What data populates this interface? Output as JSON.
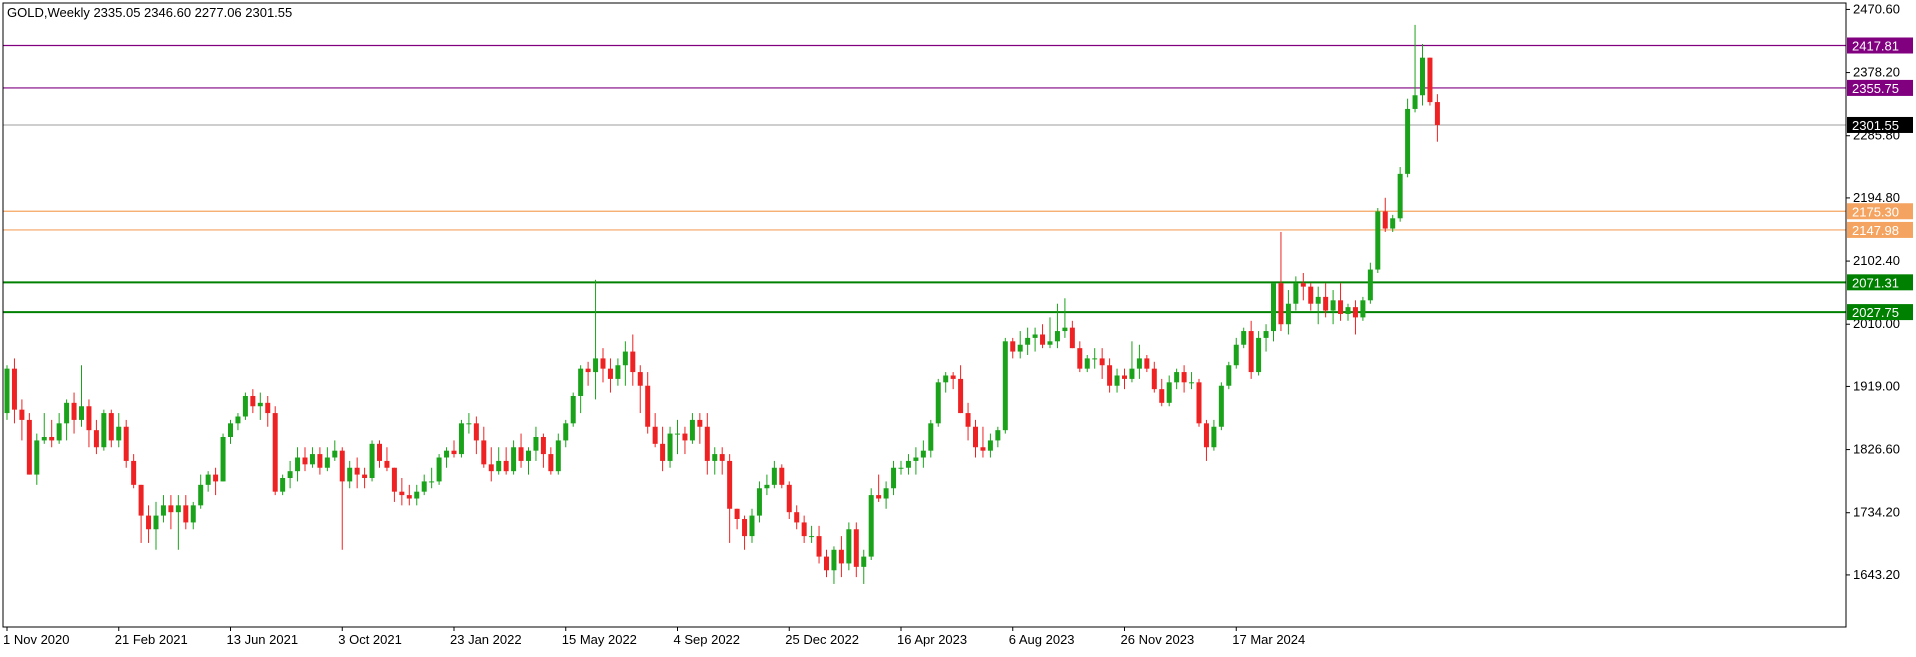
{
  "chart_data": {
    "type": "candlestick",
    "symbol": "GOLD",
    "timeframe": "Weekly",
    "header_text": "GOLD,Weekly  2335.05 2346.60 2277.06 2301.55",
    "ohlc": {
      "open": 2335.05,
      "high": 2346.6,
      "low": 2277.06,
      "close": 2301.55
    },
    "ylim": [
      1567,
      2480
    ],
    "y_ticks": [
      {
        "value": 2470.6,
        "label": "2470.60"
      },
      {
        "value": 2378.2,
        "label": "2378.20"
      },
      {
        "value": 2285.8,
        "label": "2285.80"
      },
      {
        "value": 2194.8,
        "label": "2194.80"
      },
      {
        "value": 2102.4,
        "label": "2102.40"
      },
      {
        "value": 2010.0,
        "label": "2010.00"
      },
      {
        "value": 1919.0,
        "label": "1919.00"
      },
      {
        "value": 1826.6,
        "label": "1826.60"
      },
      {
        "value": 1734.2,
        "label": "1734.20"
      },
      {
        "value": 1643.2,
        "label": "1643.20"
      }
    ],
    "x_tick_labels": [
      "1 Nov 2020",
      "21 Feb 2021",
      "13 Jun 2021",
      "3 Oct 2021",
      "23 Jan 2022",
      "15 May 2022",
      "4 Sep 2022",
      "25 Dec 2022",
      "16 Apr 2023",
      "6 Aug 2023",
      "26 Nov 2023",
      "17 Mar 2024"
    ],
    "levels": [
      {
        "value": 2417.81,
        "label": "2417.81",
        "color": "#800080"
      },
      {
        "value": 2355.75,
        "label": "2355.75",
        "color": "#800080"
      },
      {
        "value": 2301.55,
        "label": "2301.55",
        "color": "#000000",
        "line_color": "#b0b0b0"
      },
      {
        "value": 2175.3,
        "label": "2175.30",
        "color": "#f4a460"
      },
      {
        "value": 2147.98,
        "label": "2147.98",
        "color": "#f4a460"
      },
      {
        "value": 2071.31,
        "label": "2071.31",
        "color": "#008000"
      },
      {
        "value": 2027.75,
        "label": "2027.75",
        "color": "#008000"
      }
    ],
    "colors": {
      "up": "#1aa31a",
      "down": "#ee2222",
      "axis": "#000000"
    },
    "candles": [
      [
        1880,
        1950,
        1870,
        1945
      ],
      [
        1945,
        1960,
        1865,
        1885
      ],
      [
        1885,
        1900,
        1840,
        1870
      ],
      [
        1870,
        1880,
        1790,
        1790
      ],
      [
        1790,
        1850,
        1775,
        1840
      ],
      [
        1840,
        1880,
        1835,
        1845
      ],
      [
        1845,
        1870,
        1830,
        1840
      ],
      [
        1840,
        1880,
        1835,
        1865
      ],
      [
        1865,
        1900,
        1840,
        1895
      ],
      [
        1895,
        1910,
        1850,
        1870
      ],
      [
        1870,
        1950,
        1860,
        1890
      ],
      [
        1890,
        1900,
        1830,
        1855
      ],
      [
        1855,
        1870,
        1820,
        1830
      ],
      [
        1830,
        1885,
        1825,
        1880
      ],
      [
        1880,
        1885,
        1830,
        1840
      ],
      [
        1840,
        1880,
        1830,
        1860
      ],
      [
        1860,
        1870,
        1800,
        1810
      ],
      [
        1810,
        1820,
        1770,
        1775
      ],
      [
        1775,
        1775,
        1690,
        1730
      ],
      [
        1730,
        1745,
        1690,
        1710
      ],
      [
        1710,
        1750,
        1680,
        1730
      ],
      [
        1730,
        1760,
        1720,
        1745
      ],
      [
        1745,
        1760,
        1710,
        1735
      ],
      [
        1735,
        1760,
        1680,
        1745
      ],
      [
        1745,
        1760,
        1710,
        1720
      ],
      [
        1720,
        1750,
        1710,
        1745
      ],
      [
        1745,
        1790,
        1740,
        1775
      ],
      [
        1775,
        1795,
        1765,
        1790
      ],
      [
        1790,
        1800,
        1760,
        1780
      ],
      [
        1780,
        1850,
        1780,
        1845
      ],
      [
        1845,
        1870,
        1835,
        1865
      ],
      [
        1865,
        1880,
        1855,
        1875
      ],
      [
        1875,
        1910,
        1870,
        1905
      ],
      [
        1905,
        1915,
        1880,
        1890
      ],
      [
        1890,
        1910,
        1870,
        1895
      ],
      [
        1895,
        1905,
        1860,
        1880
      ],
      [
        1880,
        1890,
        1760,
        1765
      ],
      [
        1765,
        1790,
        1760,
        1785
      ],
      [
        1785,
        1810,
        1770,
        1795
      ],
      [
        1795,
        1830,
        1780,
        1815
      ],
      [
        1815,
        1830,
        1795,
        1805
      ],
      [
        1805,
        1830,
        1800,
        1820
      ],
      [
        1820,
        1830,
        1790,
        1800
      ],
      [
        1800,
        1830,
        1795,
        1815
      ],
      [
        1815,
        1840,
        1810,
        1825
      ],
      [
        1825,
        1830,
        1680,
        1780
      ],
      [
        1780,
        1810,
        1770,
        1800
      ],
      [
        1800,
        1815,
        1770,
        1790
      ],
      [
        1790,
        1800,
        1770,
        1785
      ],
      [
        1785,
        1840,
        1780,
        1835
      ],
      [
        1835,
        1840,
        1800,
        1810
      ],
      [
        1810,
        1830,
        1795,
        1800
      ],
      [
        1800,
        1800,
        1750,
        1765
      ],
      [
        1765,
        1785,
        1745,
        1760
      ],
      [
        1760,
        1775,
        1745,
        1755
      ],
      [
        1755,
        1775,
        1745,
        1765
      ],
      [
        1765,
        1790,
        1760,
        1780
      ],
      [
        1780,
        1800,
        1770,
        1780
      ],
      [
        1780,
        1820,
        1775,
        1815
      ],
      [
        1815,
        1830,
        1800,
        1825
      ],
      [
        1825,
        1840,
        1815,
        1820
      ],
      [
        1820,
        1870,
        1815,
        1865
      ],
      [
        1865,
        1880,
        1850,
        1865
      ],
      [
        1865,
        1875,
        1820,
        1840
      ],
      [
        1840,
        1860,
        1800,
        1805
      ],
      [
        1805,
        1830,
        1780,
        1795
      ],
      [
        1795,
        1830,
        1790,
        1810
      ],
      [
        1810,
        1830,
        1790,
        1795
      ],
      [
        1795,
        1840,
        1790,
        1830
      ],
      [
        1830,
        1850,
        1800,
        1810
      ],
      [
        1810,
        1830,
        1790,
        1825
      ],
      [
        1825,
        1860,
        1810,
        1845
      ],
      [
        1845,
        1850,
        1800,
        1820
      ],
      [
        1820,
        1830,
        1790,
        1795
      ],
      [
        1795,
        1850,
        1790,
        1840
      ],
      [
        1840,
        1870,
        1830,
        1865
      ],
      [
        1865,
        1910,
        1860,
        1905
      ],
      [
        1905,
        1950,
        1880,
        1945
      ],
      [
        1945,
        1955,
        1920,
        1940
      ],
      [
        1940,
        2075,
        1900,
        1960
      ],
      [
        1960,
        1975,
        1925,
        1945
      ],
      [
        1945,
        1960,
        1910,
        1930
      ],
      [
        1930,
        1960,
        1920,
        1950
      ],
      [
        1950,
        1985,
        1920,
        1970
      ],
      [
        1970,
        1995,
        1920,
        1940
      ],
      [
        1940,
        1950,
        1880,
        1920
      ],
      [
        1920,
        1940,
        1850,
        1860
      ],
      [
        1860,
        1880,
        1830,
        1835
      ],
      [
        1835,
        1860,
        1795,
        1810
      ],
      [
        1810,
        1860,
        1800,
        1850
      ],
      [
        1850,
        1870,
        1820,
        1850
      ],
      [
        1850,
        1860,
        1820,
        1840
      ],
      [
        1840,
        1880,
        1835,
        1870
      ],
      [
        1870,
        1880,
        1835,
        1860
      ],
      [
        1860,
        1880,
        1790,
        1810
      ],
      [
        1810,
        1830,
        1790,
        1820
      ],
      [
        1820,
        1830,
        1790,
        1810
      ],
      [
        1810,
        1820,
        1690,
        1740
      ],
      [
        1740,
        1740,
        1710,
        1725
      ],
      [
        1725,
        1730,
        1680,
        1700
      ],
      [
        1700,
        1740,
        1690,
        1730
      ],
      [
        1730,
        1780,
        1720,
        1770
      ],
      [
        1770,
        1790,
        1760,
        1775
      ],
      [
        1775,
        1810,
        1770,
        1800
      ],
      [
        1800,
        1805,
        1770,
        1775
      ],
      [
        1775,
        1780,
        1725,
        1735
      ],
      [
        1735,
        1745,
        1710,
        1720
      ],
      [
        1720,
        1730,
        1690,
        1700
      ],
      [
        1700,
        1715,
        1690,
        1700
      ],
      [
        1700,
        1715,
        1660,
        1670
      ],
      [
        1670,
        1680,
        1640,
        1650
      ],
      [
        1650,
        1685,
        1630,
        1680
      ],
      [
        1680,
        1700,
        1640,
        1660
      ],
      [
        1660,
        1720,
        1650,
        1710
      ],
      [
        1710,
        1720,
        1640,
        1655
      ],
      [
        1655,
        1680,
        1630,
        1670
      ],
      [
        1670,
        1770,
        1665,
        1760
      ],
      [
        1760,
        1790,
        1750,
        1755
      ],
      [
        1755,
        1780,
        1740,
        1770
      ],
      [
        1770,
        1810,
        1760,
        1800
      ],
      [
        1800,
        1810,
        1790,
        1800
      ],
      [
        1800,
        1820,
        1790,
        1810
      ],
      [
        1810,
        1830,
        1790,
        1815
      ],
      [
        1815,
        1840,
        1800,
        1825
      ],
      [
        1825,
        1870,
        1815,
        1865
      ],
      [
        1865,
        1930,
        1860,
        1925
      ],
      [
        1925,
        1940,
        1910,
        1935
      ],
      [
        1935,
        1940,
        1915,
        1930
      ],
      [
        1930,
        1950,
        1880,
        1880
      ],
      [
        1880,
        1895,
        1840,
        1860
      ],
      [
        1860,
        1870,
        1815,
        1830
      ],
      [
        1830,
        1860,
        1815,
        1825
      ],
      [
        1825,
        1850,
        1815,
        1840
      ],
      [
        1840,
        1860,
        1830,
        1855
      ],
      [
        1855,
        1990,
        1850,
        1985
      ],
      [
        1985,
        1990,
        1960,
        1970
      ],
      [
        1970,
        2000,
        1960,
        1980
      ],
      [
        1980,
        2005,
        1965,
        1990
      ],
      [
        1990,
        2005,
        1970,
        1995
      ],
      [
        1995,
        2010,
        1975,
        1980
      ],
      [
        1980,
        2020,
        1975,
        1985
      ],
      [
        1985,
        2040,
        1975,
        2000
      ],
      [
        2000,
        2048,
        1990,
        2005
      ],
      [
        2005,
        2015,
        1975,
        1975
      ],
      [
        1975,
        1985,
        1940,
        1945
      ],
      [
        1945,
        1965,
        1940,
        1960
      ],
      [
        1960,
        1975,
        1945,
        1960
      ],
      [
        1960,
        1975,
        1930,
        1950
      ],
      [
        1950,
        1960,
        1910,
        1920
      ],
      [
        1920,
        1945,
        1910,
        1935
      ],
      [
        1935,
        1945,
        1915,
        1930
      ],
      [
        1930,
        1985,
        1925,
        1945
      ],
      [
        1945,
        1980,
        1930,
        1960
      ],
      [
        1960,
        1965,
        1940,
        1945
      ],
      [
        1945,
        1955,
        1910,
        1915
      ],
      [
        1915,
        1930,
        1890,
        1895
      ],
      [
        1895,
        1935,
        1890,
        1925
      ],
      [
        1925,
        1945,
        1915,
        1940
      ],
      [
        1940,
        1950,
        1910,
        1925
      ],
      [
        1925,
        1940,
        1915,
        1925
      ],
      [
        1925,
        1930,
        1860,
        1865
      ],
      [
        1865,
        1870,
        1810,
        1830
      ],
      [
        1830,
        1870,
        1825,
        1860
      ],
      [
        1860,
        1925,
        1855,
        1920
      ],
      [
        1920,
        1955,
        1915,
        1950
      ],
      [
        1950,
        1990,
        1945,
        1980
      ],
      [
        1980,
        2005,
        1975,
        2000
      ],
      [
        2000,
        2015,
        1930,
        1940
      ],
      [
        1940,
        2000,
        1935,
        1990
      ],
      [
        1990,
        2010,
        1970,
        2000
      ],
      [
        2000,
        2070,
        1985,
        2070
      ],
      [
        2070,
        2145,
        2000,
        2010
      ],
      [
        2010,
        2060,
        1995,
        2040
      ],
      [
        2040,
        2080,
        2030,
        2070
      ],
      [
        2070,
        2085,
        2045,
        2065
      ],
      [
        2065,
        2070,
        2030,
        2040
      ],
      [
        2040,
        2065,
        2010,
        2050
      ],
      [
        2050,
        2070,
        2020,
        2030
      ],
      [
        2030,
        2060,
        2010,
        2045
      ],
      [
        2045,
        2070,
        2015,
        2025
      ],
      [
        2025,
        2040,
        2015,
        2035
      ],
      [
        2035,
        2045,
        1995,
        2020
      ],
      [
        2020,
        2050,
        2015,
        2045
      ],
      [
        2045,
        2100,
        2040,
        2090
      ],
      [
        2090,
        2180,
        2085,
        2175
      ],
      [
        2175,
        2195,
        2145,
        2150
      ],
      [
        2150,
        2170,
        2145,
        2165
      ],
      [
        2165,
        2240,
        2160,
        2230
      ],
      [
        2230,
        2340,
        2225,
        2325
      ],
      [
        2325,
        2448,
        2320,
        2345
      ],
      [
        2345,
        2420,
        2330,
        2400
      ],
      [
        2400,
        2400,
        2330,
        2335
      ],
      [
        2335.05,
        2346.6,
        2277.06,
        2301.55
      ]
    ]
  }
}
